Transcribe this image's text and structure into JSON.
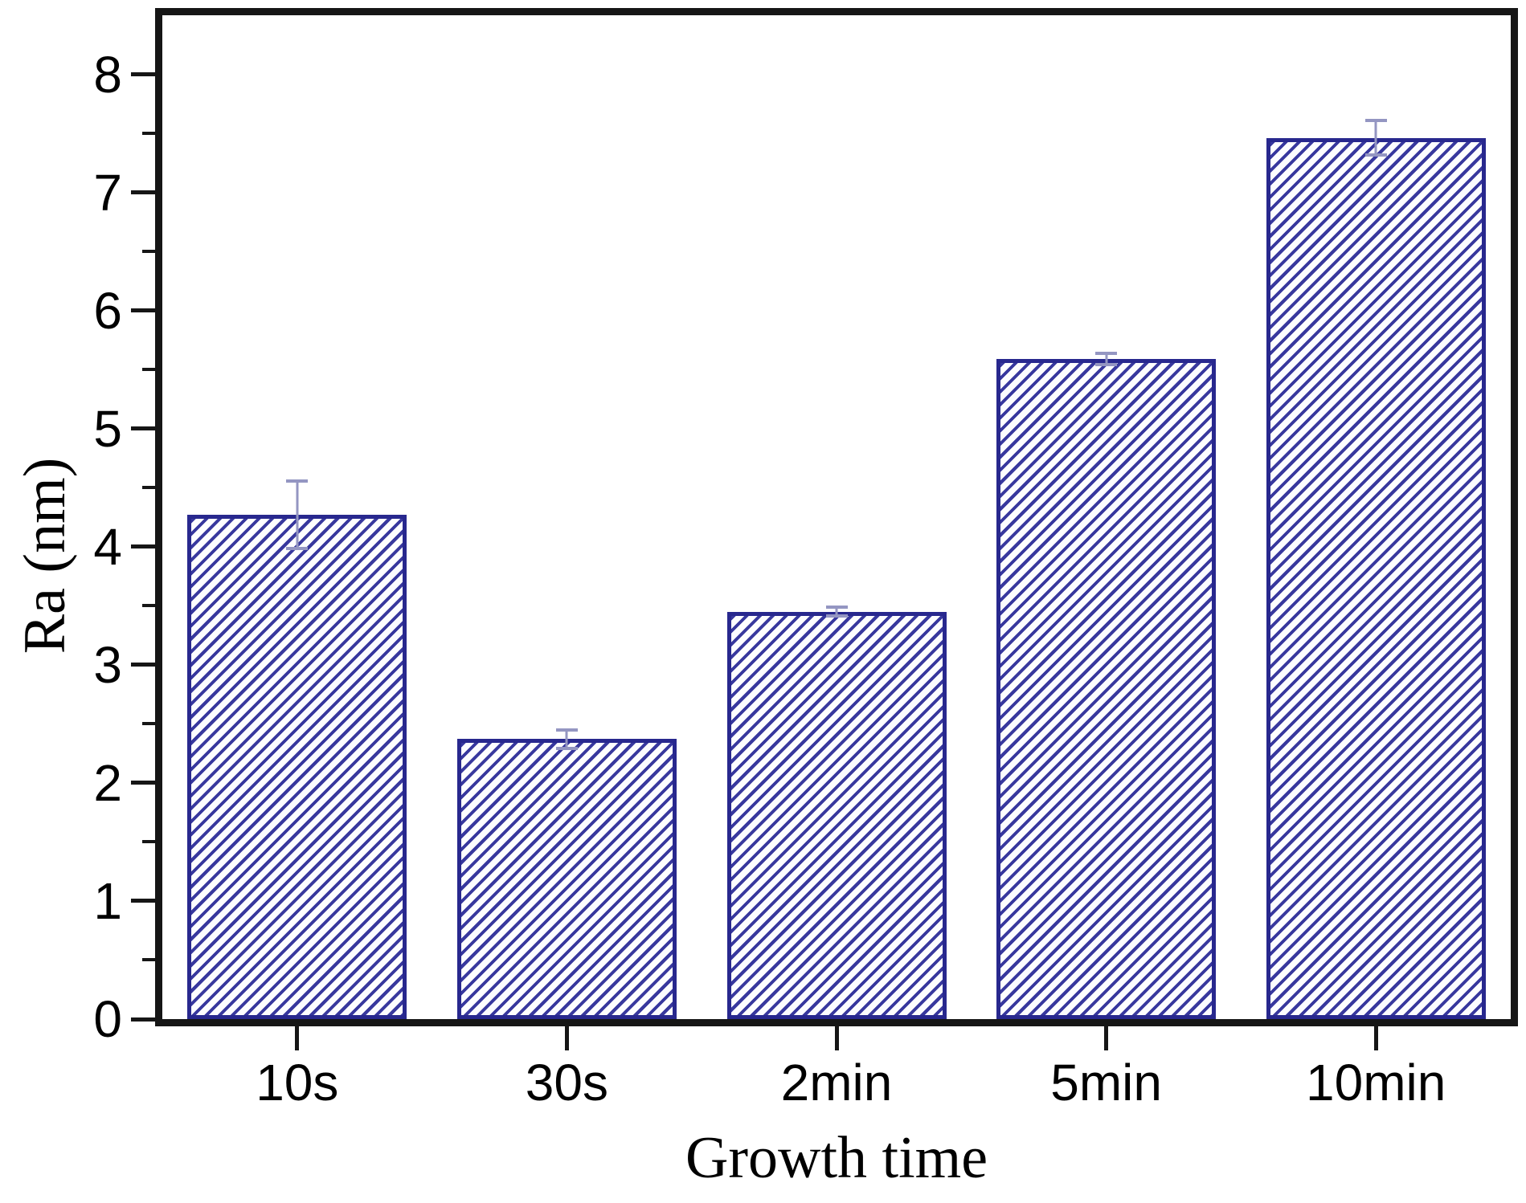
{
  "chart_data": {
    "type": "bar",
    "title": "",
    "xlabel": "Growth time",
    "ylabel": "Ra (nm)",
    "categories": [
      "10s",
      "30s",
      "2min",
      "5min",
      "10min"
    ],
    "values": [
      4.27,
      2.37,
      3.45,
      5.59,
      7.46
    ],
    "errors": [
      0.3,
      0.09,
      0.05,
      0.06,
      0.16
    ],
    "ylim": [
      0,
      8.5
    ],
    "yticks": [
      0,
      1,
      2,
      3,
      4,
      5,
      6,
      7,
      8
    ],
    "minor_yticks": [
      0.5,
      1.5,
      2.5,
      3.5,
      4.5,
      5.5,
      6.5,
      7.5
    ],
    "grid": false,
    "legend": "none",
    "bar_style": {
      "hatch": "diagonal-forward",
      "outline_color": "#28288e",
      "hatch_color": "#38389e",
      "fill_color": "#fdfdff",
      "error_color": "#9496c2",
      "axis_color": "#161616"
    }
  }
}
